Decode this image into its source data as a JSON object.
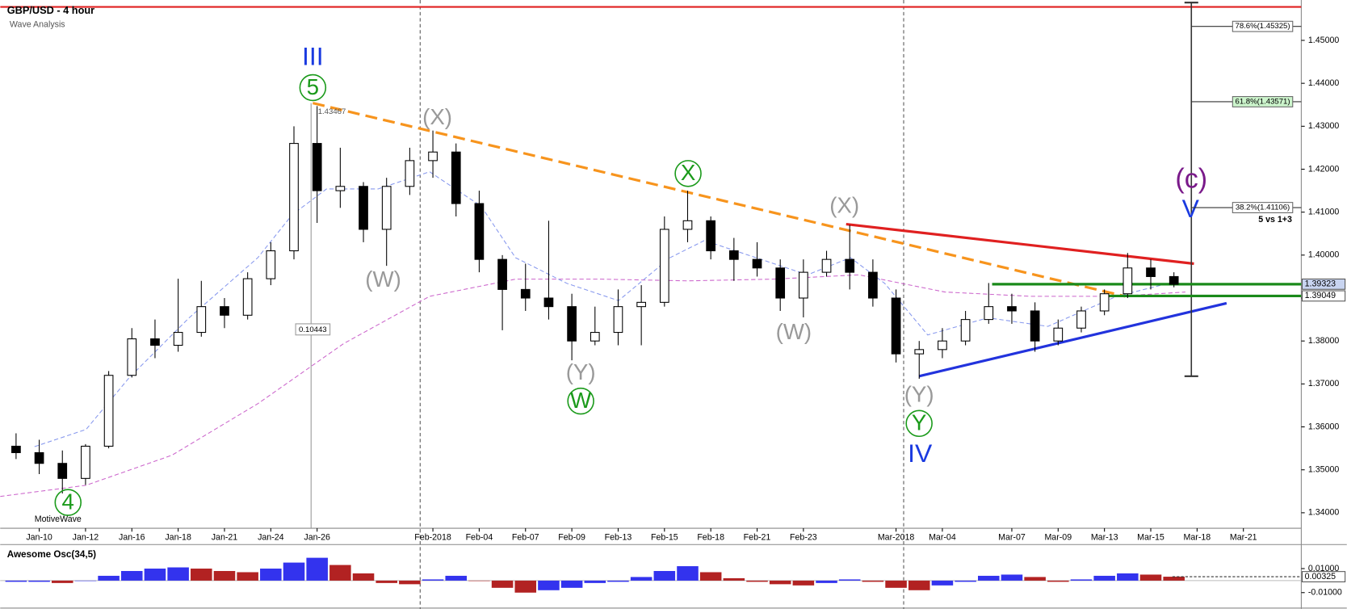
{
  "chart_data": {
    "type": "candlestick",
    "title": "GBP/USD - 4 hour",
    "subtitle": "Wave Analysis",
    "watermark": "MotiveWave",
    "categories": [
      null,
      "Jan-10",
      null,
      "Jan-12",
      null,
      "Jan-16",
      null,
      "Jan-18",
      null,
      "Jan-21",
      null,
      "Jan-24",
      null,
      "Jan-26",
      null,
      null,
      null,
      null,
      "Feb-2018",
      null,
      "Feb-04",
      null,
      "Feb-07",
      null,
      "Feb-09",
      null,
      "Feb-13",
      null,
      "Feb-15",
      null,
      "Feb-18",
      null,
      "Feb-21",
      null,
      "Feb-23",
      null,
      null,
      null,
      "Mar-2018",
      null,
      "Mar-04",
      null,
      null,
      "Mar-07",
      null,
      "Mar-09",
      null,
      "Mar-13",
      null,
      "Mar-15",
      null,
      "Mar-18",
      null,
      "Mar-21",
      null,
      null
    ],
    "open": [
      1.3555,
      1.354,
      1.3515,
      1.348,
      1.3555,
      1.372,
      1.3805,
      1.379,
      1.382,
      1.388,
      1.386,
      1.3945,
      1.401,
      1.426,
      1.415,
      1.416,
      1.406,
      1.416,
      1.422,
      1.424,
      1.412,
      1.399,
      1.392,
      1.39,
      1.388,
      1.38,
      1.382,
      1.388,
      1.389,
      1.406,
      1.408,
      1.401,
      1.399,
      1.397,
      1.39,
      1.396,
      1.399,
      1.396,
      1.39,
      1.377,
      1.378,
      1.38,
      1.385,
      1.388,
      1.387,
      1.38,
      1.383,
      1.387,
      1.391,
      1.397,
      1.395,
      null,
      null,
      null,
      null,
      null
    ],
    "high": [
      1.3585,
      1.357,
      1.3545,
      1.356,
      1.373,
      1.383,
      1.385,
      1.3945,
      1.394,
      1.39,
      1.396,
      1.403,
      1.43,
      1.4347,
      1.425,
      1.417,
      1.418,
      1.425,
      1.429,
      1.426,
      1.415,
      1.4,
      1.398,
      1.408,
      1.391,
      1.388,
      1.392,
      1.393,
      1.409,
      1.415,
      1.409,
      1.404,
      1.403,
      1.399,
      1.399,
      1.401,
      1.407,
      1.399,
      1.392,
      1.38,
      1.383,
      1.387,
      1.3935,
      1.391,
      1.389,
      1.385,
      1.388,
      1.392,
      1.4005,
      1.399,
      1.396,
      null,
      null,
      null,
      null,
      null
    ],
    "low": [
      1.3525,
      1.349,
      1.3445,
      1.3465,
      1.355,
      1.3715,
      1.376,
      1.3775,
      1.381,
      1.383,
      1.385,
      1.393,
      1.399,
      1.4075,
      1.411,
      1.403,
      1.3975,
      1.414,
      1.418,
      1.409,
      1.396,
      1.3825,
      1.387,
      1.385,
      1.3755,
      1.379,
      1.379,
      1.379,
      1.388,
      1.403,
      1.399,
      1.394,
      1.395,
      1.387,
      1.3855,
      1.395,
      1.392,
      1.388,
      1.375,
      1.3712,
      1.376,
      1.379,
      1.384,
      1.384,
      1.3775,
      1.379,
      1.382,
      1.386,
      1.39,
      1.392,
      1.3925,
      null,
      null,
      null,
      null,
      null
    ],
    "close": [
      1.354,
      1.3515,
      1.348,
      1.3555,
      1.372,
      1.3805,
      1.379,
      1.382,
      1.388,
      1.386,
      1.3945,
      1.401,
      1.426,
      1.415,
      1.416,
      1.406,
      1.416,
      1.422,
      1.424,
      1.412,
      1.399,
      1.392,
      1.39,
      1.388,
      1.38,
      1.382,
      1.388,
      1.389,
      1.406,
      1.408,
      1.401,
      1.399,
      1.397,
      1.39,
      1.396,
      1.399,
      1.396,
      1.39,
      1.377,
      1.378,
      1.38,
      1.385,
      1.388,
      1.387,
      1.38,
      1.383,
      1.387,
      1.391,
      1.397,
      1.395,
      1.3932,
      null,
      null,
      null,
      null,
      null
    ],
    "ylim": [
      1.3364,
      1.4594
    ],
    "yticks": [
      {
        "value": 1.45,
        "label": "1.45000"
      },
      {
        "value": 1.44,
        "label": "1.44000"
      },
      {
        "value": 1.43,
        "label": "1.43000"
      },
      {
        "value": 1.42,
        "label": "1.42000"
      },
      {
        "value": 1.41,
        "label": "1.41000"
      },
      {
        "value": 1.4,
        "label": "1.40000"
      },
      {
        "value": 1.39,
        "label": "1.39000"
      },
      {
        "value": 1.38,
        "label": "1.38000"
      },
      {
        "value": 1.37,
        "label": "1.37000"
      },
      {
        "value": 1.36,
        "label": "1.36000"
      },
      {
        "value": 1.35,
        "label": "1.35000"
      },
      {
        "value": 1.34,
        "label": "1.34000"
      }
    ],
    "price_labels": [
      {
        "value": 1.39323,
        "label": "1.39323"
      },
      {
        "value": 1.39049,
        "label": "1.39049"
      }
    ],
    "fib_levels": [
      {
        "value": 1.45325,
        "label": "78.6%(1.45325)"
      },
      {
        "value": 1.43571,
        "label": "61.8%(1.43571)"
      },
      {
        "value": 1.41106,
        "label": "38.2%(1.41106)"
      }
    ],
    "peak_label": {
      "value": 1.43467,
      "label": "1.43467"
    },
    "range_label": {
      "value": 0.10443,
      "label": "0.10443"
    },
    "annotation": "5 vs 1+3",
    "wave_labels": [
      "III",
      "5",
      "(X)",
      "(W)",
      "(Y)",
      "W",
      "X",
      "(X)",
      "(W)",
      "(Y)",
      "Y",
      "IV",
      "(c)",
      "V",
      "4"
    ],
    "candle_color": "#000000",
    "oscillator": {
      "title": "Awesome Osc(34,5)",
      "values": [
        -0.001,
        -0.001,
        -0.002,
        0.0,
        0.004,
        0.008,
        0.01,
        0.011,
        0.01,
        0.008,
        0.007,
        0.01,
        0.015,
        0.019,
        0.013,
        0.006,
        -0.002,
        -0.003,
        0.001,
        0.004,
        0.0,
        -0.006,
        -0.01,
        -0.008,
        -0.006,
        -0.002,
        -0.001,
        0.003,
        0.008,
        0.012,
        0.007,
        0.002,
        -0.001,
        -0.003,
        -0.004,
        -0.002,
        0.001,
        -0.001,
        -0.006,
        -0.008,
        -0.004,
        -0.001,
        0.004,
        0.005,
        0.003,
        -0.001,
        0.001,
        0.004,
        0.006,
        0.005,
        0.00325,
        null,
        null,
        null,
        null,
        null
      ],
      "ylim": [
        -0.0236,
        0.0293
      ],
      "yticks": [
        {
          "value": 0.01,
          "label": "0.01000"
        },
        {
          "value": -0.01,
          "label": "-0.01000"
        }
      ],
      "last_label": {
        "value": 0.00325,
        "label": "0.00325"
      },
      "up_color": "#3333ee",
      "down_color": "#b22222"
    }
  }
}
